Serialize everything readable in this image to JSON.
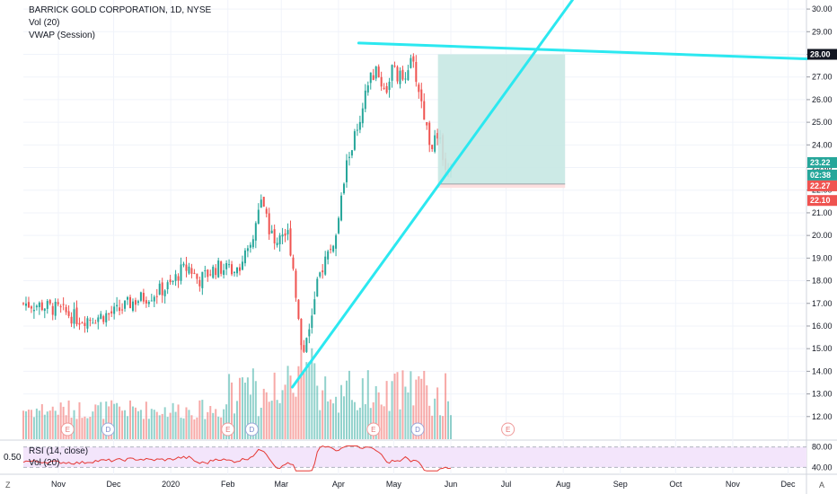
{
  "header": {
    "symbol": "BARRICK GOLD CORPORATION, 1D, NYSE",
    "vol": "Vol (20)",
    "vwap": "VWAP (Session)"
  },
  "rsi_panel": {
    "label": "RSI (14, close)",
    "vol": "Vol (20)",
    "side_value": "0.50",
    "levels": [
      "80.00",
      "40.00"
    ]
  },
  "corner_left": "Z",
  "corner_right": "A",
  "colors": {
    "up": "#26a69a",
    "down": "#ef5350",
    "trend": "#2ce8f0",
    "rsi_line": "#e53935",
    "rsi_band": "#f3e5fb",
    "target_zone": "#c7e8e3",
    "stop_zone": "#fde0e0",
    "tag_last": "#26a69a",
    "tag_red": "#ef5350",
    "tag_dark": "#131722"
  },
  "price_tags": [
    {
      "label": "28.00",
      "value": 28.0,
      "color": "#131722"
    },
    {
      "label": "23.22",
      "value": 23.22,
      "color": "#26a69a"
    },
    {
      "label": "02:38",
      "value": 22.75,
      "color": "#26a69a"
    },
    {
      "label": "22.27",
      "value": 22.27,
      "color": "#ef5350"
    },
    {
      "label": "22.10",
      "value": 22.1,
      "color": "#ef5350"
    }
  ],
  "chart_data": {
    "type": "candlestick",
    "title": "BARRICK GOLD CORPORATION, 1D, NYSE",
    "yticks": [
      12,
      13,
      14,
      15,
      16,
      17,
      18,
      19,
      20,
      21,
      22,
      23,
      24,
      25,
      26,
      27,
      28,
      29,
      30
    ],
    "ytick_labels": [
      "12.00",
      "13.00",
      "14.00",
      "15.00",
      "16.00",
      "17.00",
      "18.00",
      "19.00",
      "20.00",
      "21.00",
      "22.00",
      "23.00",
      "24.00",
      "25.00",
      "26.00",
      "27.00",
      "28.00",
      "29.00",
      "30.00"
    ],
    "ylim": [
      11.0,
      30.4
    ],
    "xaxis_labels": [
      "Nov",
      "Dec",
      "2020",
      "Feb",
      "Mar",
      "Apr",
      "May",
      "Jun",
      "Jul",
      "Aug",
      "Sep",
      "Oct",
      "Nov",
      "Dec"
    ],
    "x_domain_days": [
      0,
      425
    ],
    "x_tick_days": [
      19,
      49,
      80,
      111,
      140,
      171,
      201,
      232,
      262,
      293,
      324,
      354,
      385,
      415
    ],
    "price_path": [
      [
        0,
        17.0
      ],
      [
        10,
        16.9
      ],
      [
        20,
        16.7
      ],
      [
        30,
        16.3
      ],
      [
        40,
        16.4
      ],
      [
        50,
        16.6
      ],
      [
        60,
        17.1
      ],
      [
        70,
        17.4
      ],
      [
        80,
        17.8
      ],
      [
        85,
        18.4
      ],
      [
        90,
        18.6
      ],
      [
        95,
        18.0
      ],
      [
        100,
        18.3
      ],
      [
        105,
        18.6
      ],
      [
        110,
        18.5
      ],
      [
        115,
        18.6
      ],
      [
        118,
        18.8
      ],
      [
        122,
        19.2
      ],
      [
        125,
        20.0
      ],
      [
        128,
        21.2
      ],
      [
        130,
        21.6
      ],
      [
        133,
        20.5
      ],
      [
        136,
        19.6
      ],
      [
        140,
        20.2
      ],
      [
        144,
        20.0
      ],
      [
        147,
        18.3
      ],
      [
        150,
        15.6
      ],
      [
        152,
        14.8
      ],
      [
        154,
        15.8
      ],
      [
        157,
        16.5
      ],
      [
        160,
        18.0
      ],
      [
        163,
        18.8
      ],
      [
        166,
        19.3
      ],
      [
        170,
        20.0
      ],
      [
        173,
        21.8
      ],
      [
        176,
        23.4
      ],
      [
        180,
        24.4
      ],
      [
        183,
        24.8
      ],
      [
        186,
        26.3
      ],
      [
        188,
        27.0
      ],
      [
        191,
        27.2
      ],
      [
        194,
        26.8
      ],
      [
        197,
        26.4
      ],
      [
        200,
        27.4
      ],
      [
        203,
        27.0
      ],
      [
        206,
        26.9
      ],
      [
        209,
        27.6
      ],
      [
        212,
        27.4
      ],
      [
        215,
        26.3
      ],
      [
        218,
        25.1
      ],
      [
        221,
        24.0
      ],
      [
        224,
        24.2
      ],
      [
        227,
        23.9
      ],
      [
        230,
        22.8
      ],
      [
        233,
        22.5
      ]
    ],
    "events": [
      {
        "label": "E",
        "day": 24
      },
      {
        "label": "D",
        "day": 46
      },
      {
        "label": "E",
        "day": 111
      },
      {
        "label": "D",
        "day": 124
      },
      {
        "label": "E",
        "day": 190
      },
      {
        "label": "D",
        "day": 214
      },
      {
        "label": "E",
        "day": 263
      }
    ],
    "trendlines": [
      {
        "from": [
          182,
          28.5
        ],
        "to": [
          425,
          27.8
        ]
      },
      {
        "from": [
          146,
          13.3
        ],
        "to": [
          298,
          30.4
        ]
      }
    ],
    "long_position": {
      "start_day": 225,
      "end_day": 294,
      "entry": 22.27,
      "target": 28.0,
      "stop": 22.1
    },
    "rsi_levels": [
      80,
      40
    ],
    "rsi_range": [
      30,
      90
    ]
  }
}
